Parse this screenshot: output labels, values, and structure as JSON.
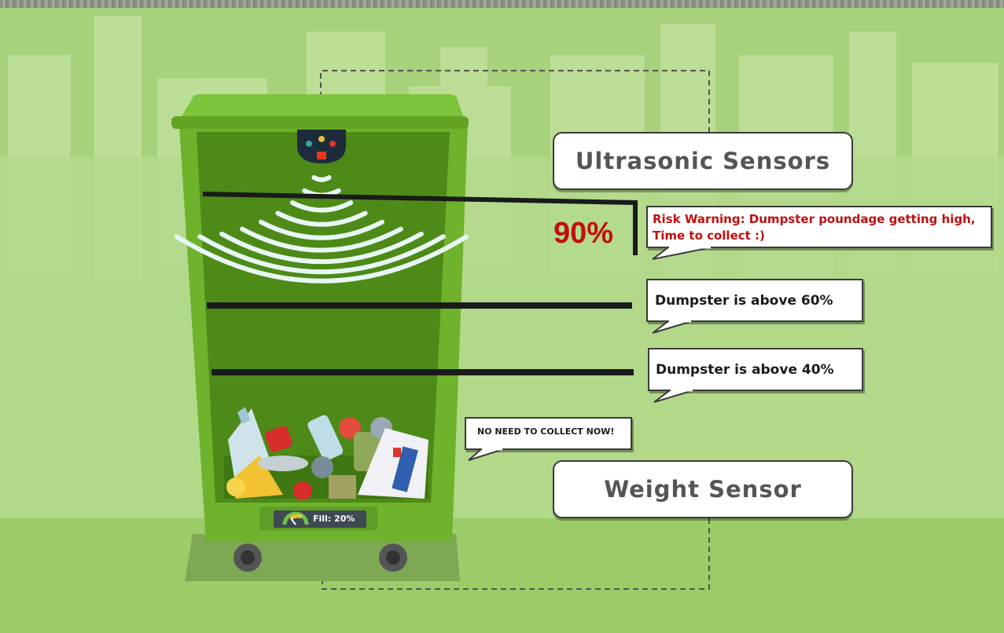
{
  "labels": {
    "ultrasonic": "Ultrasonic Sensors",
    "weight": "Weight Sensor"
  },
  "level_marker": {
    "percent_text": "90%"
  },
  "callouts": {
    "risk_line1": "Risk Warning: Dumpster poundage getting high,",
    "risk_line2": "Time to collect :)",
    "above60": "Dumpster is above 60%",
    "above40": "Dumpster is above 40%",
    "no_collect": "NO NEED TO COLLECT NOW!"
  },
  "bin": {
    "fill_text": "Fill: 20%",
    "fill_fraction": 0.2
  },
  "colors": {
    "background": "#a7d17a",
    "bin_body": "#6fb22c",
    "bin_inner": "#4d8a17",
    "warning_red": "#c00f0f",
    "waves": "#e8f7f5"
  }
}
